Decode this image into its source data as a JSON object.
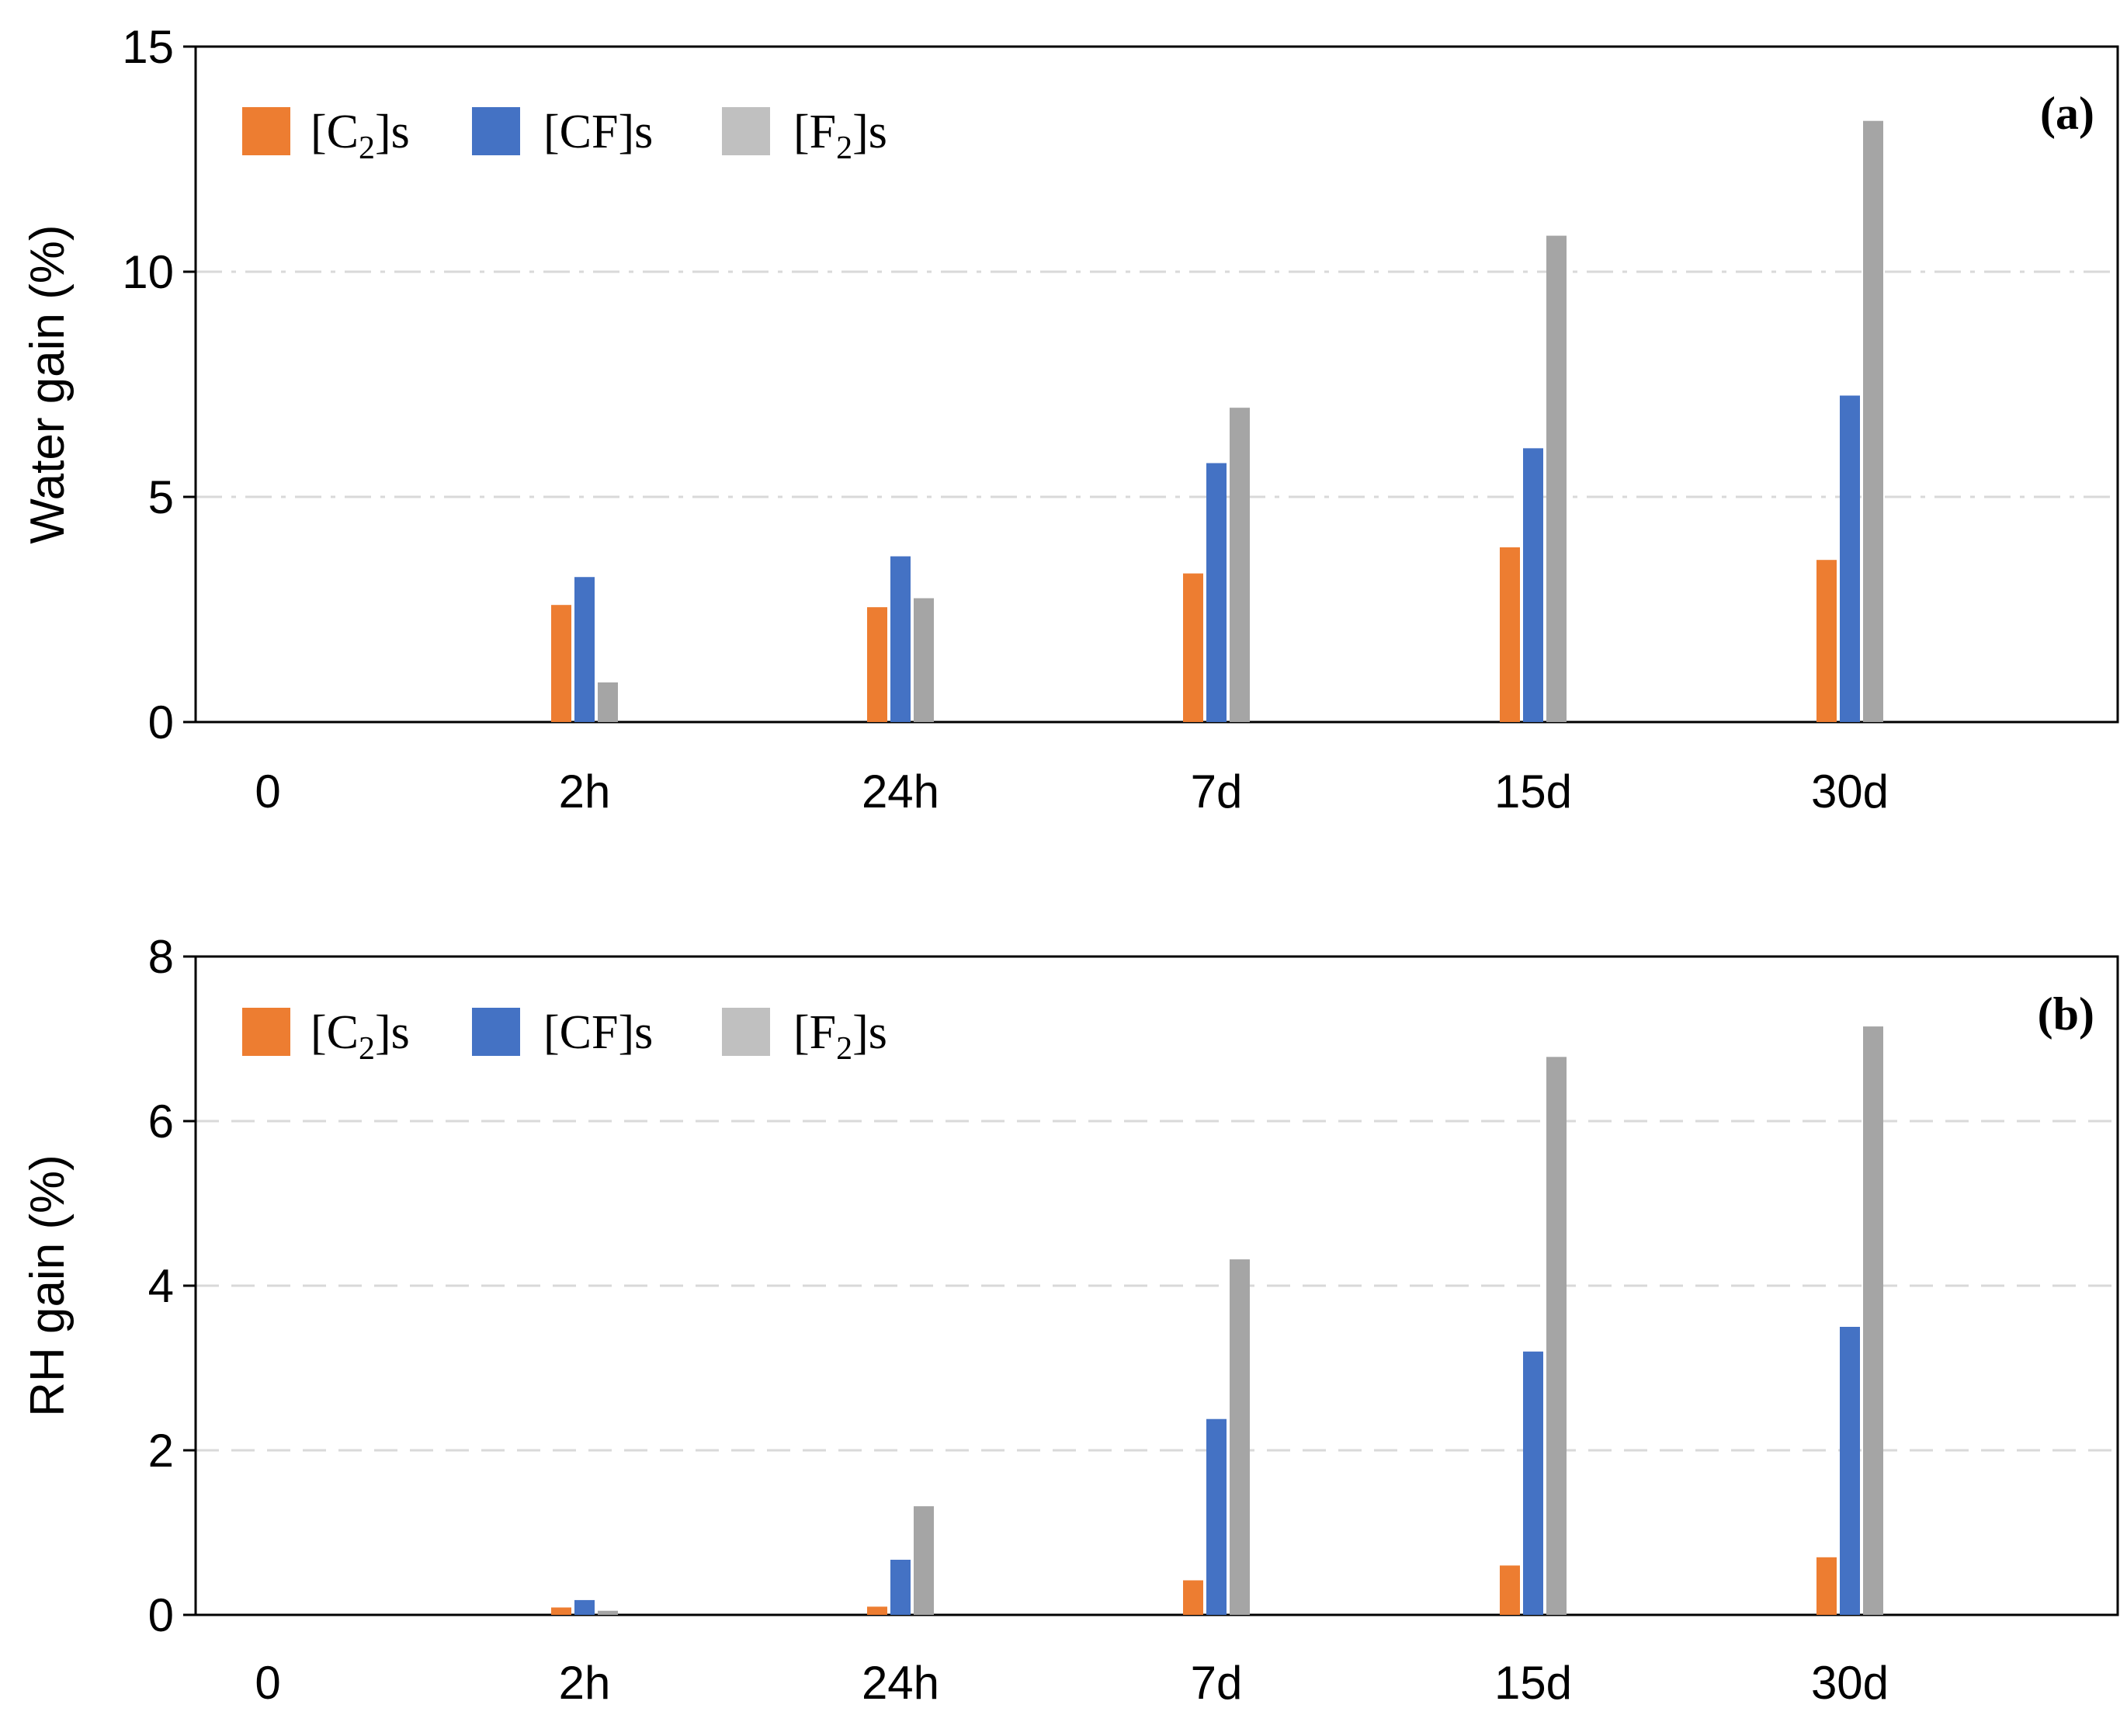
{
  "colors": {
    "series": [
      "#ED7D31",
      "#4472C4",
      "#A5A5A5"
    ],
    "legend_swatch": [
      "#ED7D31",
      "#4472C4",
      "#C0C0C0"
    ],
    "grid": "#D9D9D9",
    "axis": "#000000"
  },
  "chart_data": [
    {
      "type": "bar",
      "panel_label": "(a)",
      "title": "",
      "xlabel": "",
      "ylabel": "Water gain (%)",
      "ylim": [
        0,
        15
      ],
      "yticks": [
        0,
        5,
        10,
        15
      ],
      "ytick_labels": [
        "0",
        "5",
        "10",
        "15"
      ],
      "categories": [
        "0",
        "2h",
        "24h",
        "7d",
        "15d",
        "30d"
      ],
      "grid_style": "dash-dot",
      "legend_placement": "top-left",
      "legend": [
        {
          "base": "[C",
          "sub": "2",
          "tail": "]s"
        },
        {
          "base": "[CF]s",
          "sub": "",
          "tail": ""
        },
        {
          "base": "[F",
          "sub": "2",
          "tail": "]s"
        }
      ],
      "series": [
        {
          "name": "[C2]s",
          "values": [
            0,
            2.6,
            2.55,
            3.3,
            3.88,
            3.6
          ]
        },
        {
          "name": "[CF]s",
          "values": [
            0,
            3.22,
            3.68,
            5.75,
            6.08,
            7.25
          ]
        },
        {
          "name": "[F2]s",
          "values": [
            0,
            0.88,
            2.75,
            6.98,
            10.8,
            13.35
          ]
        }
      ]
    },
    {
      "type": "bar",
      "panel_label": "(b)",
      "title": "",
      "xlabel": "",
      "ylabel": "RH gain (%)",
      "ylim": [
        0,
        8
      ],
      "yticks": [
        0,
        2,
        4,
        6,
        8
      ],
      "ytick_labels": [
        "0",
        "2",
        "4",
        "6",
        "8"
      ],
      "categories": [
        "0",
        "2h",
        "24h",
        "7d",
        "15d",
        "30d"
      ],
      "grid_style": "dash",
      "legend_placement": "top-left",
      "legend": [
        {
          "base": "[C",
          "sub": "2",
          "tail": "]s"
        },
        {
          "base": "[CF]s",
          "sub": "",
          "tail": ""
        },
        {
          "base": "[F",
          "sub": "2",
          "tail": "]s"
        }
      ],
      "series": [
        {
          "name": "[C2]s",
          "values": [
            0,
            0.09,
            0.1,
            0.42,
            0.6,
            0.7
          ]
        },
        {
          "name": "[CF]s",
          "values": [
            0,
            0.18,
            0.67,
            2.38,
            3.2,
            3.5
          ]
        },
        {
          "name": "[F2]s",
          "values": [
            0,
            0.05,
            1.32,
            4.32,
            6.78,
            7.15
          ]
        }
      ]
    }
  ]
}
